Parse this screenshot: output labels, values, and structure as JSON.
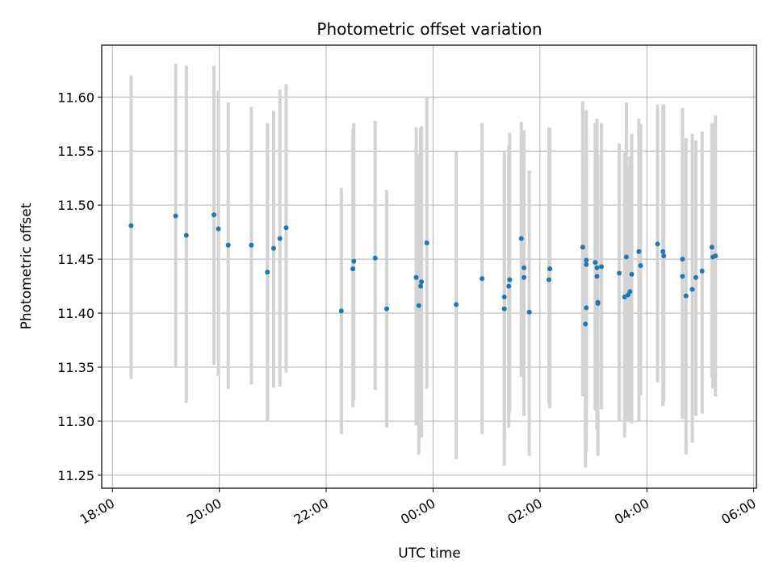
{
  "chart_data": {
    "type": "scatter",
    "title": "Photometric offset variation",
    "xlabel": "UTC time",
    "ylabel": "Photometric offset",
    "grid": true,
    "colors": {
      "point": "#1f77b4",
      "errorbar": "#d3d3d3",
      "grid": "#b0b0b0"
    },
    "xlim": [
      "17:48",
      "06:03"
    ],
    "ylim": [
      11.238,
      11.648
    ],
    "x_ticks": [
      "18:00",
      "20:00",
      "22:00",
      "00:00",
      "02:00",
      "04:00",
      "06:00"
    ],
    "y_ticks": [
      "11.25",
      "11.30",
      "11.35",
      "11.40",
      "11.45",
      "11.50",
      "11.55",
      "11.60"
    ],
    "series": [
      {
        "x": [
          "18:21",
          "19:11",
          "19:23",
          "19:54",
          "19:59",
          "20:10",
          "20:36",
          "20:54",
          "21:01",
          "21:08",
          "21:15",
          "22:17",
          "22:30",
          "22:31",
          "22:55",
          "23:08",
          "23:41",
          "23:44",
          "23:46",
          "23:47",
          "23:53",
          "00:26",
          "00:55",
          "01:20",
          "01:20",
          "01:25",
          "01:26",
          "01:39",
          "01:42",
          "01:42",
          "01:48",
          "02:10",
          "02:11",
          "02:48",
          "02:51",
          "02:52",
          "02:52",
          "02:52",
          "03:02",
          "03:04",
          "03:04",
          "03:05",
          "03:05",
          "03:09",
          "03:29",
          "03:35",
          "03:37",
          "03:39",
          "03:41",
          "03:43",
          "03:51",
          "03:53",
          "04:12",
          "04:18",
          "04:19",
          "04:40",
          "04:40",
          "04:44",
          "04:51",
          "04:55",
          "05:02",
          "05:13",
          "05:14",
          "05:17"
        ],
        "y": [
          11.481,
          11.49,
          11.472,
          11.491,
          11.478,
          11.463,
          11.463,
          11.438,
          11.46,
          11.469,
          11.479,
          11.402,
          11.441,
          11.448,
          11.451,
          11.404,
          11.433,
          11.407,
          11.425,
          11.429,
          11.465,
          11.408,
          11.432,
          11.404,
          11.415,
          11.425,
          11.431,
          11.469,
          11.433,
          11.442,
          11.401,
          11.431,
          11.441,
          11.461,
          11.39,
          11.405,
          11.445,
          11.449,
          11.447,
          11.434,
          11.442,
          11.41,
          11.409,
          11.443,
          11.437,
          11.415,
          11.452,
          11.417,
          11.42,
          11.436,
          11.457,
          11.444,
          11.464,
          11.457,
          11.453,
          11.45,
          11.434,
          11.416,
          11.422,
          11.433,
          11.439,
          11.461,
          11.452,
          11.453
        ],
        "err_low": [
          11.339,
          11.35,
          11.317,
          11.352,
          11.342,
          11.33,
          11.334,
          11.3,
          11.331,
          11.332,
          11.345,
          11.288,
          11.313,
          11.319,
          11.329,
          11.294,
          11.296,
          11.269,
          11.285,
          11.285,
          11.33,
          11.265,
          11.288,
          11.285,
          11.259,
          11.294,
          11.308,
          11.341,
          11.305,
          11.319,
          11.268,
          11.316,
          11.312,
          11.323,
          11.257,
          11.272,
          11.299,
          11.321,
          11.31,
          11.292,
          11.304,
          11.268,
          11.274,
          11.311,
          11.3,
          11.285,
          11.304,
          11.3,
          11.299,
          11.298,
          11.3,
          11.324,
          11.336,
          11.314,
          11.318,
          11.302,
          11.302,
          11.269,
          11.28,
          11.305,
          11.307,
          11.34,
          11.33,
          11.323
        ],
        "err_high": [
          11.62,
          11.631,
          11.629,
          11.629,
          11.606,
          11.595,
          11.591,
          11.576,
          11.587,
          11.607,
          11.612,
          11.516,
          11.57,
          11.576,
          11.578,
          11.514,
          11.572,
          11.547,
          11.571,
          11.573,
          11.6,
          11.55,
          11.576,
          11.55,
          11.543,
          11.555,
          11.567,
          11.577,
          11.567,
          11.569,
          11.532,
          11.572,
          11.571,
          11.596,
          11.522,
          11.535,
          11.588,
          11.577,
          11.576,
          11.57,
          11.58,
          11.547,
          11.546,
          11.576,
          11.557,
          11.549,
          11.595,
          11.536,
          11.545,
          11.566,
          11.58,
          11.575,
          11.593,
          11.593,
          11.593,
          11.59,
          11.566,
          11.562,
          11.566,
          11.56,
          11.568,
          11.576,
          11.576,
          11.583
        ]
      }
    ]
  }
}
